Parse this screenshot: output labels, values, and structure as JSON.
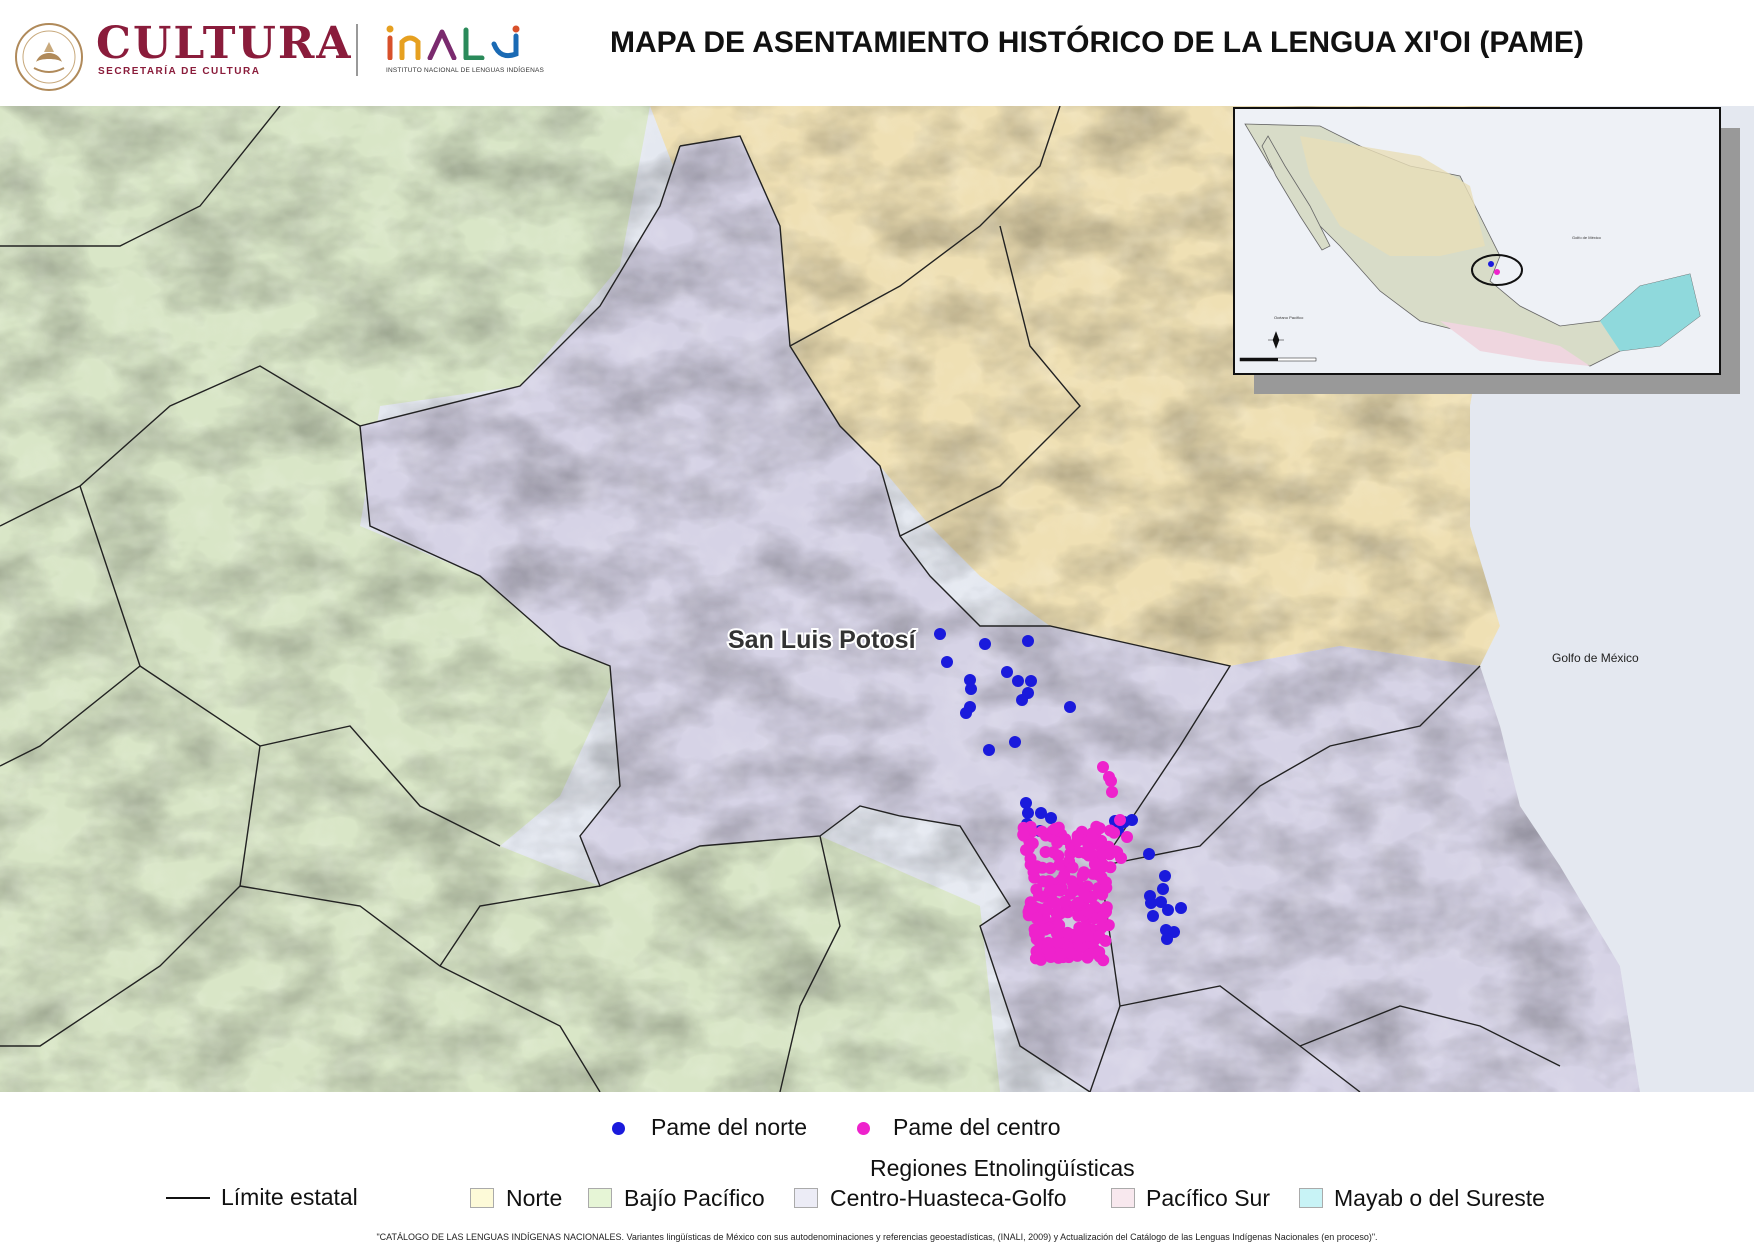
{
  "header": {
    "cultura_name": "CULTURA",
    "cultura_subtitle": "SECRETARÍA DE CULTURA",
    "inali_subtitle": "INSTITUTO NACIONAL DE LENGUAS INDÍGENAS",
    "map_title": "MAPA DE ASENTAMIENTO HISTÓRICO DE LA LENGUA XIꞌOI (PAME)"
  },
  "map": {
    "state_label": "San Luis Potosí",
    "sea_label": "Golfo de México",
    "inset_sea_label_1": "Golfo de México",
    "inset_sea_label_2": "Océano Pacífico",
    "colors": {
      "norte": "#efe0b4",
      "bajio_pacifico": "#d9e6c7",
      "centro_huasteca_golfo": "#d6d3e6",
      "pacifico_sur": "#efdde3",
      "mayab": "#9fdfe0",
      "sea": "#e4e8f0",
      "pame_norte": "#1a1adc",
      "pame_centro": "#ee22cc"
    }
  },
  "legend": {
    "series": [
      {
        "label": "Pame del norte",
        "color": "#1a1adc"
      },
      {
        "label": "Pame del centro",
        "color": "#ee22cc"
      }
    ],
    "regions_title": "Regiones Etnolingüísticas",
    "boundary_label": "Límite estatal",
    "regions": [
      {
        "label": "Norte",
        "color": "#fdfad8"
      },
      {
        "label": "Bajío Pacífico",
        "color": "#e6f5d6"
      },
      {
        "label": "Centro-Huasteca-Golfo",
        "color": "#ececf6"
      },
      {
        "label": "Pacífico Sur",
        "color": "#f8e8ee"
      },
      {
        "label": "Mayab o del Sureste",
        "color": "#c8f3f6"
      }
    ],
    "footnote": "\"CATÁLOGO DE LAS LENGUAS INDÍGENAS NACIONALES. Variantes lingüísticas de México con sus autodenominaciones y referencias geoestadísticas, (INALI, 2009) y Actualización del Catálogo de las Lenguas Indígenas Nacionales (en proceso)\"."
  }
}
